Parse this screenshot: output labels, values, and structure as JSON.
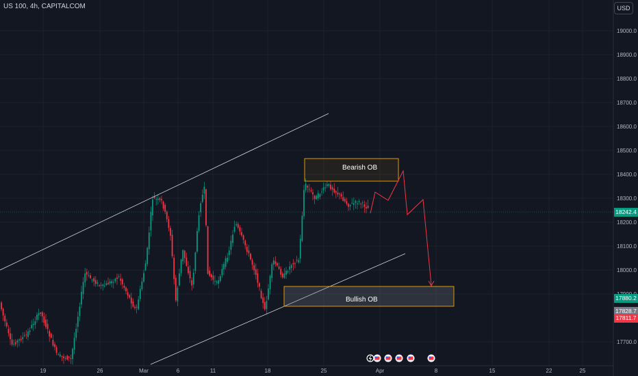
{
  "symbol_title": "US 100, 4h, CAPITALCOM",
  "currency_button": "USD",
  "price_axis": {
    "ticks": [
      "19000.0",
      "18900.0",
      "18800.0",
      "18700.0",
      "18600.0",
      "18500.0",
      "18400.0",
      "18300.0",
      "18200.0",
      "18100.0",
      "18000.0",
      "17900.0",
      "17700.0"
    ]
  },
  "time_axis": {
    "ticks": [
      "19",
      "26",
      "Mar",
      "6",
      "11",
      "18",
      "25",
      "Apr",
      "8",
      "15",
      "22",
      "25"
    ]
  },
  "price_tags": {
    "last": "18242.4",
    "green": "17880.2",
    "gray": "17828.7",
    "red": "17811.7"
  },
  "zones": {
    "bearish_label": "Bearish OB",
    "bullish_label": "Bullish OB"
  },
  "colors": {
    "background": "#131722",
    "up_candle": "#089981",
    "down_candle": "#f23645",
    "zone_border": "#f7a600",
    "projection": "#f23645",
    "trendline": "#d1d4dc",
    "tag_green": "#089981",
    "tag_red": "#f23645",
    "tag_gray": "#787b86"
  },
  "event_icons": [
    "lightning-icon",
    "us-flag-icon",
    "us-flag-icon",
    "us-flag-icon",
    "us-flag-icon",
    "us-flag-icon"
  ]
}
